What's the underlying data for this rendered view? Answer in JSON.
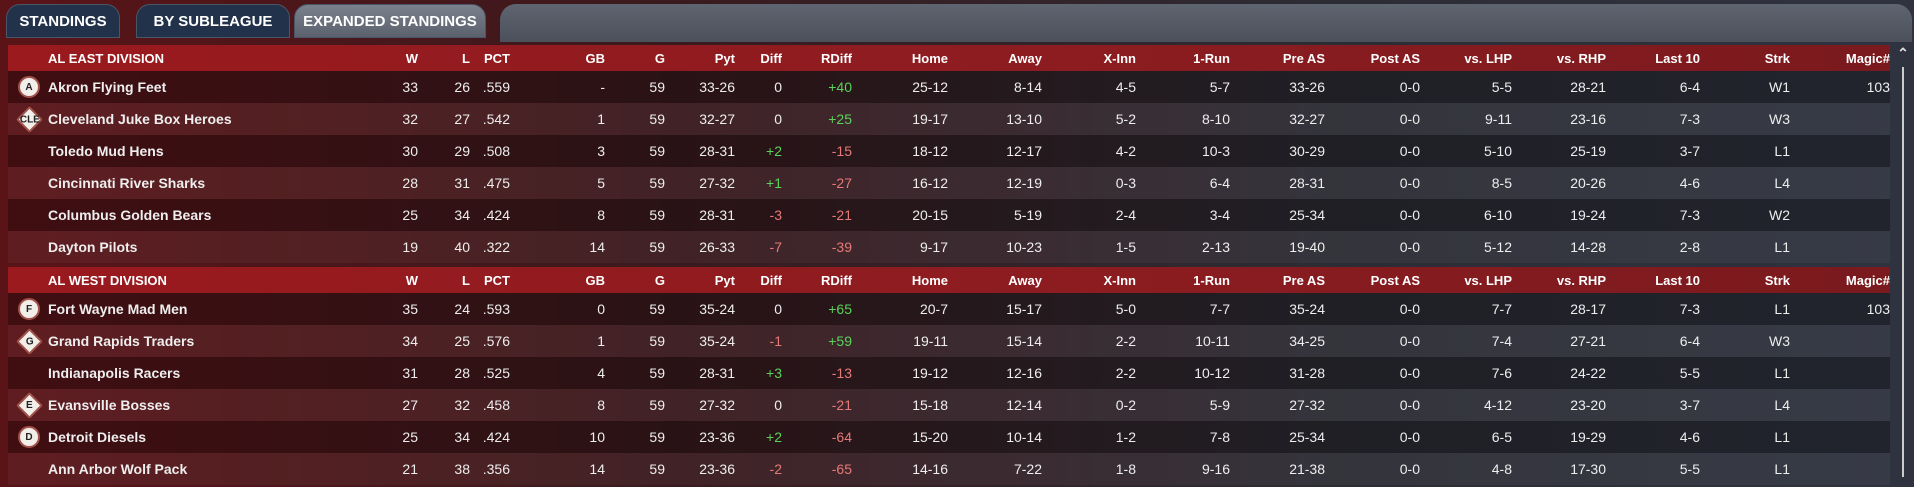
{
  "tabs": [
    "STANDINGS",
    "BY SUBLEAGUE",
    "EXPANDED STANDINGS"
  ],
  "active_tab": 2,
  "columns": [
    "W",
    "L",
    "PCT",
    "GB",
    "G",
    "Pyt",
    "Diff",
    "RDiff",
    "Home",
    "Away",
    "X-Inn",
    "1-Run",
    "Pre AS",
    "Post AS",
    "vs. LHP",
    "vs. RHP",
    "Last 10",
    "Strk",
    "Magic#"
  ],
  "colors": {
    "positive": "#5ad35a",
    "negative": "#e77a76",
    "header": "#9a1a1e"
  },
  "divisions": [
    {
      "name": "AL EAST DIVISION",
      "teams": [
        {
          "logo": "A",
          "team": "Akron  Flying Feet",
          "v": [
            "33",
            "26",
            ".559",
            "-",
            "59",
            "33-26",
            "0",
            "+40",
            "25-12",
            "8-14",
            "4-5",
            "5-7",
            "33-26",
            "0-0",
            "5-5",
            "28-21",
            "6-4",
            "W1",
            "103"
          ]
        },
        {
          "logo": "CLE",
          "team": "Cleveland Juke Box Heroes",
          "v": [
            "32",
            "27",
            ".542",
            "1",
            "59",
            "32-27",
            "0",
            "+25",
            "19-17",
            "13-10",
            "5-2",
            "8-10",
            "32-27",
            "0-0",
            "9-11",
            "23-16",
            "7-3",
            "W3",
            ""
          ]
        },
        {
          "logo": "",
          "team": "Toledo  Mud Hens",
          "v": [
            "30",
            "29",
            ".508",
            "3",
            "59",
            "28-31",
            "+2",
            "-15",
            "18-12",
            "12-17",
            "4-2",
            "10-3",
            "30-29",
            "0-0",
            "5-10",
            "25-19",
            "3-7",
            "L1",
            ""
          ]
        },
        {
          "logo": "",
          "team": "Cincinnati River Sharks",
          "v": [
            "28",
            "31",
            ".475",
            "5",
            "59",
            "27-32",
            "+1",
            "-27",
            "16-12",
            "12-19",
            "0-3",
            "6-4",
            "28-31",
            "0-0",
            "8-5",
            "20-26",
            "4-6",
            "L4",
            ""
          ]
        },
        {
          "logo": "",
          "team": "Columbus Golden Bears",
          "v": [
            "25",
            "34",
            ".424",
            "8",
            "59",
            "28-31",
            "-3",
            "-21",
            "20-15",
            "5-19",
            "2-4",
            "3-4",
            "25-34",
            "0-0",
            "6-10",
            "19-24",
            "7-3",
            "W2",
            ""
          ]
        },
        {
          "logo": "",
          "team": "Dayton Pilots",
          "v": [
            "19",
            "40",
            ".322",
            "14",
            "59",
            "26-33",
            "-7",
            "-39",
            "9-17",
            "10-23",
            "1-5",
            "2-13",
            "19-40",
            "0-0",
            "5-12",
            "14-28",
            "2-8",
            "L1",
            ""
          ]
        }
      ]
    },
    {
      "name": "AL WEST DIVISION",
      "teams": [
        {
          "logo": "F",
          "team": "Fort Wayne Mad Men",
          "v": [
            "35",
            "24",
            ".593",
            "0",
            "59",
            "35-24",
            "0",
            "+65",
            "20-7",
            "15-17",
            "5-0",
            "7-7",
            "35-24",
            "0-0",
            "7-7",
            "28-17",
            "7-3",
            "L1",
            "103"
          ]
        },
        {
          "logo": "G",
          "team": "Grand Rapids Traders",
          "v": [
            "34",
            "25",
            ".576",
            "1",
            "59",
            "35-24",
            "-1",
            "+59",
            "19-11",
            "15-14",
            "2-2",
            "10-11",
            "34-25",
            "0-0",
            "7-4",
            "27-21",
            "6-4",
            "W3",
            ""
          ]
        },
        {
          "logo": "",
          "team": "Indianapolis Racers",
          "v": [
            "31",
            "28",
            ".525",
            "4",
            "59",
            "28-31",
            "+3",
            "-13",
            "19-12",
            "12-16",
            "2-2",
            "10-12",
            "31-28",
            "0-0",
            "7-6",
            "24-22",
            "5-5",
            "L1",
            ""
          ]
        },
        {
          "logo": "E",
          "team": "Evansville Bosses",
          "v": [
            "27",
            "32",
            ".458",
            "8",
            "59",
            "27-32",
            "0",
            "-21",
            "15-18",
            "12-14",
            "0-2",
            "5-9",
            "27-32",
            "0-0",
            "4-12",
            "23-20",
            "3-7",
            "L4",
            ""
          ]
        },
        {
          "logo": "D",
          "team": "Detroit Diesels",
          "v": [
            "25",
            "34",
            ".424",
            "10",
            "59",
            "23-36",
            "+2",
            "-64",
            "15-20",
            "10-14",
            "1-2",
            "7-8",
            "25-34",
            "0-0",
            "6-5",
            "19-29",
            "4-6",
            "L1",
            ""
          ]
        },
        {
          "logo": "",
          "team": "Ann Arbor Wolf Pack",
          "v": [
            "21",
            "38",
            ".356",
            "14",
            "59",
            "23-36",
            "-2",
            "-65",
            "14-16",
            "7-22",
            "1-8",
            "9-16",
            "21-38",
            "0-0",
            "4-8",
            "17-30",
            "5-5",
            "L1",
            ""
          ]
        }
      ]
    }
  ],
  "scrollbar": {
    "up_arrow": "^"
  }
}
